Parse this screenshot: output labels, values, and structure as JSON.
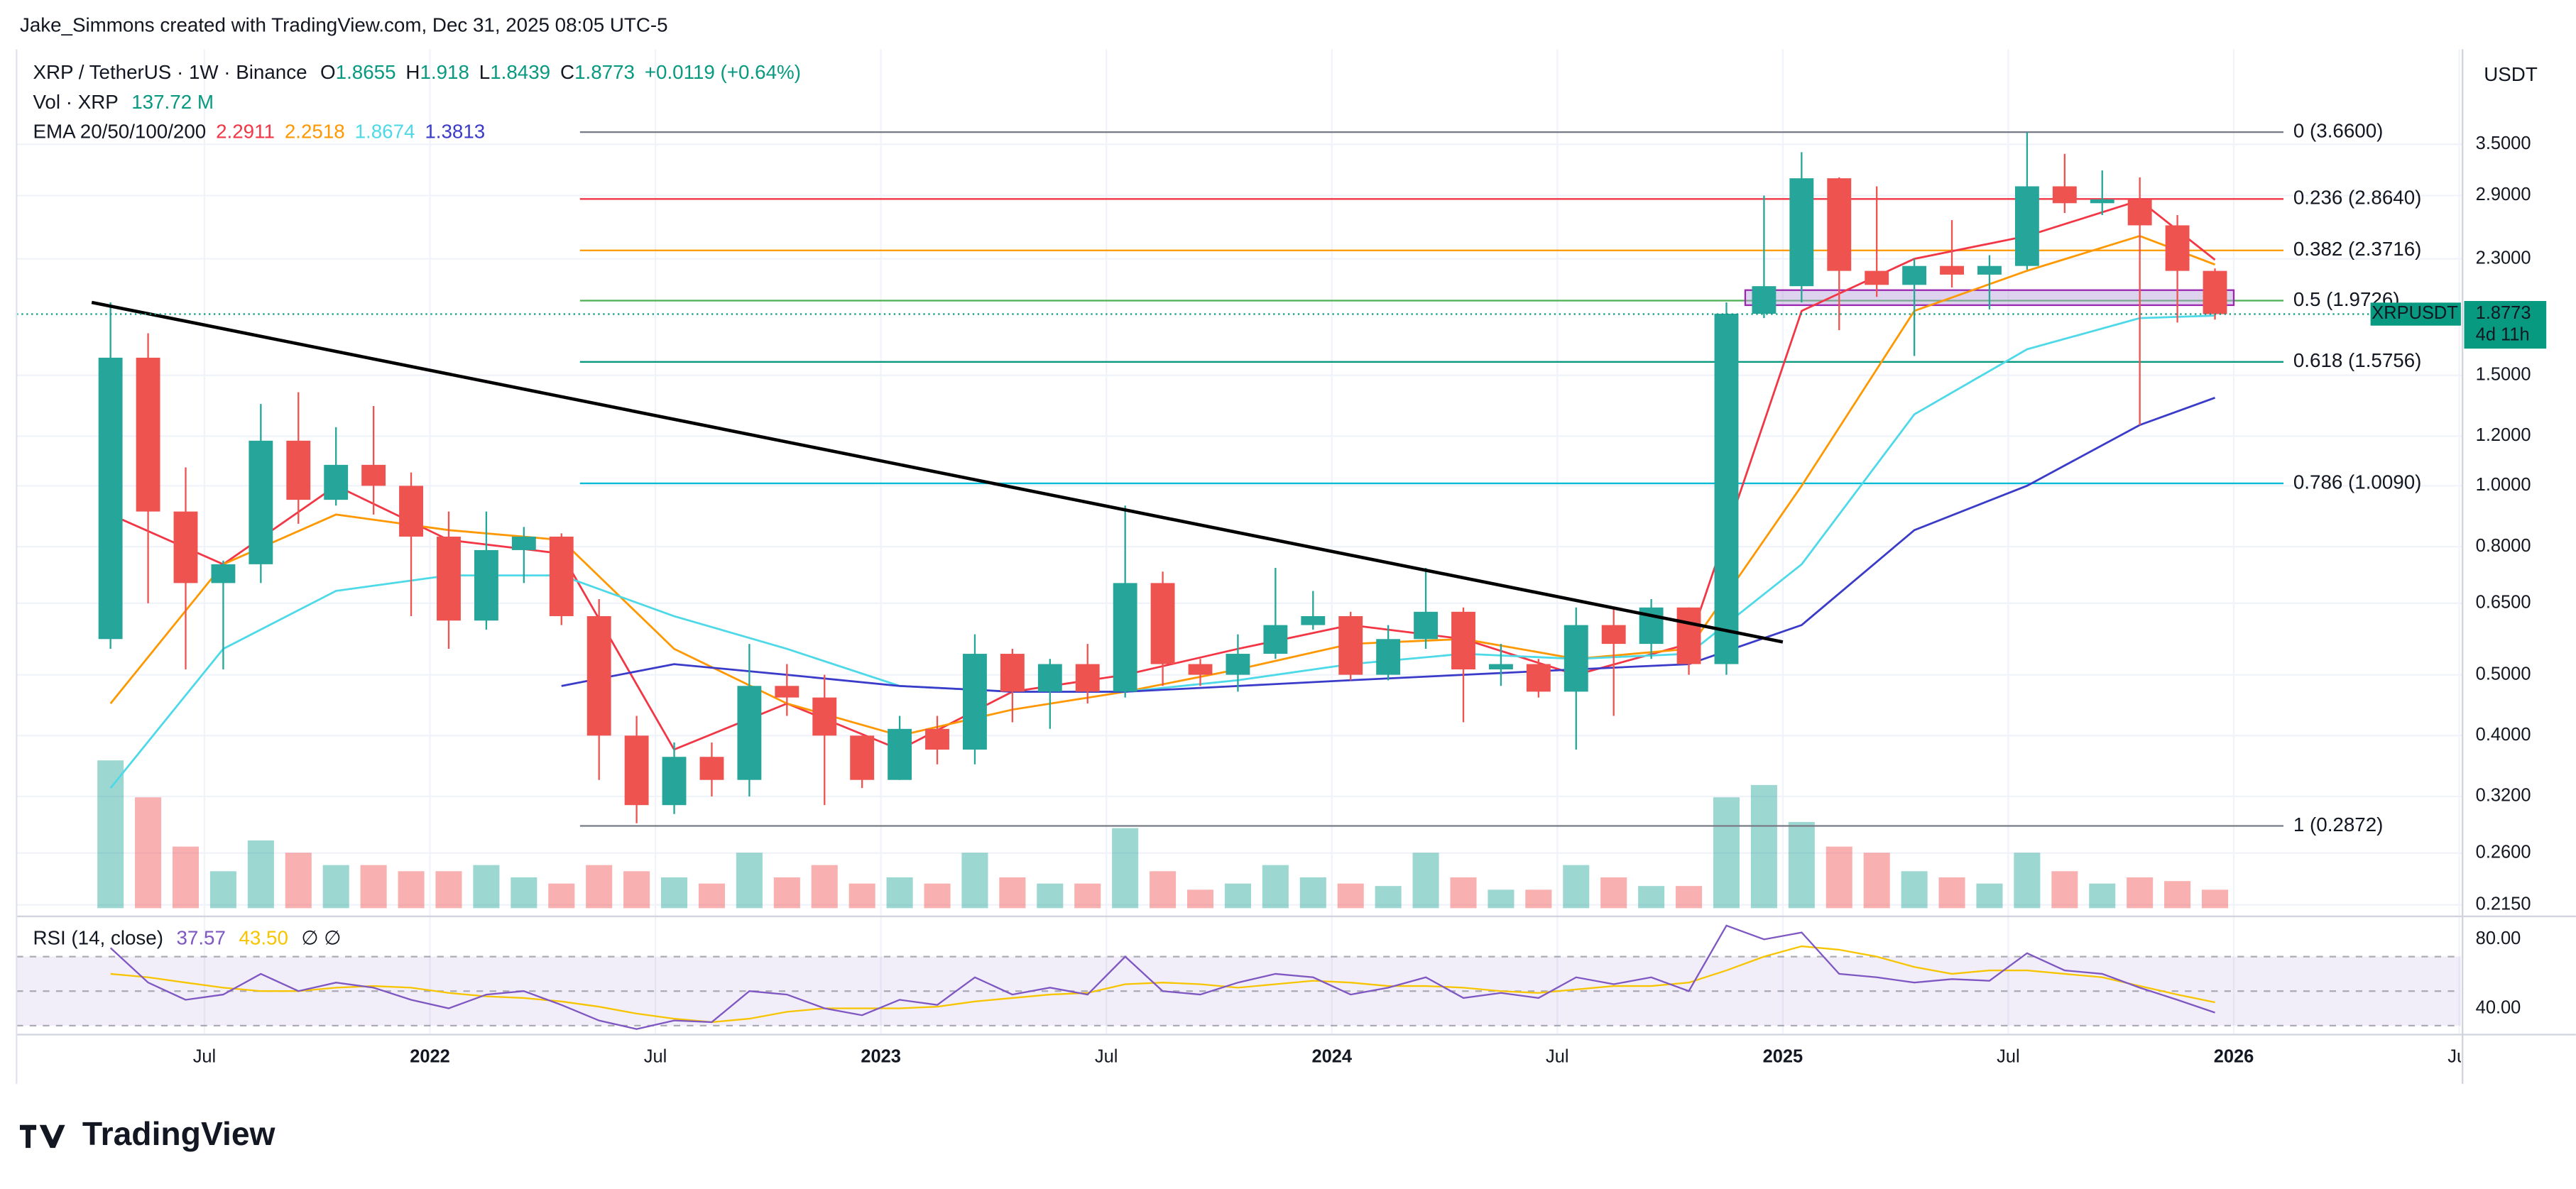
{
  "chart_data": {
    "type": "candlestick",
    "credit": "Jake_Simmons created with TradingView.com, Dec 31, 2025 08:05 UTC-5",
    "symbol": "XRP / TetherUS · 1W · Binance",
    "legend": {
      "o_label": "O",
      "o": 1.8655,
      "h_label": "H",
      "h": 1.918,
      "l_label": "L",
      "l": 1.8439,
      "c_label": "C",
      "c": 1.8773,
      "change": "+0.0119 (+0.64%)"
    },
    "currency": "USDT",
    "last_price": 1.8773,
    "ticker": "XRPUSDT",
    "countdown": "4d 11h",
    "log_scale": true,
    "grid": true,
    "up_color": "#26a69a",
    "down_color": "#ef5350",
    "xlim": [
      "2021-02",
      "2026-07"
    ],
    "ylim": [
      0.2124,
      4.96
    ],
    "yticks": [
      {
        "value": 3.5,
        "label": "3.5000"
      },
      {
        "value": 2.9,
        "label": "2.9000"
      },
      {
        "value": 2.3,
        "label": "2.3000"
      },
      {
        "value": 1.5,
        "label": "1.5000"
      },
      {
        "value": 1.2,
        "label": "1.2000"
      },
      {
        "value": 1.0,
        "label": "1.0000"
      },
      {
        "value": 0.8,
        "label": "0.8000"
      },
      {
        "value": 0.65,
        "label": "0.6500"
      },
      {
        "value": 0.5,
        "label": "0.5000"
      },
      {
        "value": 0.4,
        "label": "0.4000"
      },
      {
        "value": 0.32,
        "label": "0.3200"
      },
      {
        "value": 0.26,
        "label": "0.2600"
      },
      {
        "value": 0.215,
        "label": "0.2150"
      }
    ],
    "xticks": [
      {
        "value": "2021-07",
        "label": "Jul"
      },
      {
        "value": "2022-01",
        "label": "2022"
      },
      {
        "value": "2022-07",
        "label": "Jul"
      },
      {
        "value": "2023-01",
        "label": "2023"
      },
      {
        "value": "2023-07",
        "label": "Jul"
      },
      {
        "value": "2024-01",
        "label": "2024"
      },
      {
        "value": "2024-07",
        "label": "Jul"
      },
      {
        "value": "2025-01",
        "label": "2025"
      },
      {
        "value": "2025-07",
        "label": "Jul"
      },
      {
        "value": "2026-01",
        "label": "2026"
      },
      {
        "value": "2026-07",
        "label": "Jul"
      }
    ],
    "candles": {
      "x": [
        "2021-04",
        "2021-05",
        "2021-06",
        "2021-07",
        "2021-08",
        "2021-09",
        "2021-10",
        "2021-11",
        "2021-12",
        "2022-01",
        "2022-02",
        "2022-03",
        "2022-04",
        "2022-05",
        "2022-06",
        "2022-07",
        "2022-08",
        "2022-09",
        "2022-10",
        "2022-11",
        "2022-12",
        "2023-01",
        "2023-02",
        "2023-03",
        "2023-04",
        "2023-05",
        "2023-06",
        "2023-07",
        "2023-08",
        "2023-09",
        "2023-10",
        "2023-11",
        "2023-12",
        "2024-01",
        "2024-02",
        "2024-03",
        "2024-04",
        "2024-05",
        "2024-06",
        "2024-07",
        "2024-08",
        "2024-09",
        "2024-10",
        "2024-11",
        "2024-12",
        "2025-01",
        "2025-02",
        "2025-03",
        "2025-04",
        "2025-05",
        "2025-06",
        "2025-07",
        "2025-08",
        "2025-09",
        "2025-10",
        "2025-11",
        "2025-12"
      ],
      "open": [
        0.57,
        1.6,
        0.91,
        0.7,
        0.75,
        1.18,
        0.95,
        1.08,
        1.0,
        0.83,
        0.61,
        0.79,
        0.83,
        0.62,
        0.4,
        0.31,
        0.37,
        0.34,
        0.48,
        0.46,
        0.4,
        0.34,
        0.41,
        0.38,
        0.54,
        0.47,
        0.52,
        0.47,
        0.7,
        0.52,
        0.5,
        0.54,
        0.6,
        0.62,
        0.5,
        0.57,
        0.63,
        0.51,
        0.52,
        0.47,
        0.6,
        0.56,
        0.64,
        0.52,
        1.88,
        2.08,
        3.09,
        2.2,
        2.09,
        2.24,
        2.17,
        2.24,
        3.0,
        2.82,
        2.86,
        2.6,
        2.2
      ],
      "high": [
        1.96,
        1.75,
        1.07,
        0.76,
        1.35,
        1.41,
        1.24,
        1.34,
        1.05,
        0.91,
        0.91,
        0.86,
        0.84,
        0.66,
        0.43,
        0.39,
        0.39,
        0.56,
        0.52,
        0.5,
        0.4,
        0.43,
        0.43,
        0.58,
        0.55,
        0.53,
        0.56,
        0.93,
        0.73,
        0.53,
        0.58,
        0.74,
        0.68,
        0.63,
        0.6,
        0.74,
        0.64,
        0.56,
        0.53,
        0.64,
        0.64,
        0.66,
        0.64,
        1.96,
        2.9,
        3.4,
        3.1,
        3.0,
        2.3,
        2.65,
        2.33,
        3.66,
        3.38,
        3.18,
        3.1,
        2.7,
        2.22
      ],
      "low": [
        0.55,
        0.65,
        0.51,
        0.51,
        0.7,
        0.87,
        0.93,
        0.9,
        0.62,
        0.55,
        0.59,
        0.7,
        0.6,
        0.34,
        0.29,
        0.3,
        0.32,
        0.32,
        0.43,
        0.31,
        0.33,
        0.34,
        0.36,
        0.36,
        0.42,
        0.41,
        0.45,
        0.46,
        0.48,
        0.48,
        0.47,
        0.53,
        0.59,
        0.49,
        0.49,
        0.55,
        0.42,
        0.48,
        0.46,
        0.38,
        0.43,
        0.53,
        0.5,
        0.5,
        1.85,
        1.96,
        1.77,
        2.0,
        1.61,
        2.07,
        1.91,
        2.21,
        2.72,
        2.7,
        1.25,
        1.82,
        1.84
      ],
      "close": [
        1.6,
        0.91,
        0.7,
        0.75,
        1.18,
        0.95,
        1.08,
        1.0,
        0.83,
        0.61,
        0.79,
        0.83,
        0.62,
        0.4,
        0.31,
        0.37,
        0.34,
        0.48,
        0.46,
        0.4,
        0.34,
        0.41,
        0.38,
        0.54,
        0.47,
        0.52,
        0.47,
        0.7,
        0.52,
        0.5,
        0.54,
        0.6,
        0.62,
        0.5,
        0.57,
        0.63,
        0.51,
        0.52,
        0.47,
        0.6,
        0.56,
        0.64,
        0.52,
        1.88,
        2.08,
        3.09,
        2.2,
        2.09,
        2.24,
        2.17,
        2.24,
        3.0,
        2.82,
        2.86,
        2.6,
        2.2,
        1.8773
      ]
    },
    "volume": {
      "label": "Vol · XRP",
      "last": {
        "value": 137.72,
        "label": "137.72 M"
      },
      "vlim": [
        0,
        16000
      ],
      "values": [
        12000,
        9000,
        5000,
        3000,
        5500,
        4500,
        3500,
        3500,
        3000,
        3000,
        3500,
        2500,
        2000,
        3500,
        3000,
        2500,
        2000,
        4500,
        2500,
        3500,
        2000,
        2500,
        2000,
        4500,
        2500,
        2000,
        2000,
        6500,
        3000,
        1500,
        2000,
        3500,
        2500,
        2000,
        1800,
        4500,
        2500,
        1500,
        1500,
        3500,
        2500,
        1800,
        1800,
        9000,
        10000,
        7000,
        5000,
        4500,
        3000,
        2500,
        2000,
        4500,
        3000,
        2000,
        2500,
        2200,
        1500
      ]
    },
    "ema_label": "EMA 20/50/100/200",
    "ema_x": [
      "2021-04",
      "2021-07",
      "2021-10",
      "2022-01",
      "2022-04",
      "2022-07",
      "2022-10",
      "2023-01",
      "2023-04",
      "2023-07",
      "2023-10",
      "2024-01",
      "2024-04",
      "2024-07",
      "2024-10",
      "2025-01",
      "2025-04",
      "2025-07",
      "2025-10",
      "2025-12"
    ],
    "ema_series": [
      {
        "color": "#f23645",
        "values": [
          0.9,
          0.75,
          1.0,
          0.82,
          0.78,
          0.38,
          0.45,
          0.38,
          0.47,
          0.5,
          0.55,
          0.6,
          0.57,
          0.5,
          0.56,
          1.9,
          2.3,
          2.5,
          2.85,
          2.2911
        ]
      },
      {
        "color": "#ff9800",
        "values": [
          0.45,
          0.75,
          0.9,
          0.85,
          0.82,
          0.55,
          0.45,
          0.4,
          0.44,
          0.47,
          0.51,
          0.56,
          0.57,
          0.53,
          0.55,
          1.0,
          1.9,
          2.2,
          2.5,
          2.2518
        ]
      },
      {
        "color": "#4dd9e8",
        "values": [
          0.33,
          0.55,
          0.68,
          0.72,
          0.72,
          0.62,
          0.55,
          0.48,
          0.47,
          0.47,
          0.49,
          0.52,
          0.54,
          0.53,
          0.54,
          0.75,
          1.3,
          1.65,
          1.85,
          1.8674
        ]
      },
      {
        "color": "#3b3bc9",
        "values": [
          null,
          null,
          null,
          null,
          0.48,
          0.52,
          0.5,
          0.48,
          0.47,
          0.47,
          0.48,
          0.49,
          0.5,
          0.51,
          0.52,
          0.6,
          0.85,
          1.0,
          1.25,
          1.3813
        ]
      }
    ],
    "fib_levels": [
      {
        "price": 3.66,
        "label": "0 (3.6600)",
        "color": "#787b86"
      },
      {
        "price": 2.864,
        "label": "0.236 (2.8640)",
        "color": "#f23645"
      },
      {
        "price": 2.3716,
        "label": "0.382 (2.3716)",
        "color": "#ff9800"
      },
      {
        "price": 1.9726,
        "label": "0.5 (1.9726)",
        "color": "#4caf50"
      },
      {
        "price": 1.5756,
        "label": "0.618 (1.5756)",
        "color": "#089981"
      },
      {
        "price": 1.009,
        "label": "0.786 (1.0090)",
        "color": "#00bcd4"
      },
      {
        "price": 0.2872,
        "label": "1 (0.2872)",
        "color": "#787b86"
      }
    ],
    "trendline": {
      "x": [
        "2021-04",
        "2025-01"
      ],
      "y": [
        1.96,
        0.564
      ]
    },
    "zone": {
      "x": [
        "2024-12",
        "2026-01"
      ],
      "y": [
        1.94,
        2.05
      ]
    },
    "rsi": {
      "label": "RSI (14, close)",
      "ma_last": {
        "value": 43.5,
        "label": "43.50"
      },
      "extra": "∅ ∅",
      "ylim": [
        26.7,
        89.5
      ],
      "band": [
        30,
        70
      ],
      "mid": 50,
      "yticks": [
        {
          "value": 80,
          "label": "80.00"
        },
        {
          "value": 40,
          "label": "40.00"
        }
      ],
      "values": [
        75,
        55,
        45,
        48,
        60,
        50,
        55,
        52,
        45,
        40,
        48,
        50,
        42,
        33,
        28,
        33,
        32,
        50,
        48,
        40,
        36,
        45,
        42,
        58,
        48,
        52,
        48,
        70,
        50,
        48,
        55,
        60,
        58,
        48,
        52,
        58,
        46,
        49,
        46,
        58,
        54,
        58,
        50,
        88,
        80,
        84,
        60,
        58,
        55,
        57,
        56,
        72,
        62,
        60,
        52,
        45,
        37.57
      ],
      "ma": [
        60,
        58,
        55,
        52,
        50,
        50,
        52,
        53,
        52,
        49,
        47,
        46,
        44,
        41,
        37,
        34,
        32,
        34,
        38,
        40,
        40,
        40,
        41,
        44,
        46,
        48,
        49,
        54,
        55,
        54,
        52,
        54,
        56,
        55,
        53,
        53,
        52,
        50,
        49,
        51,
        53,
        53,
        55,
        62,
        70,
        76,
        74,
        70,
        64,
        60,
        62,
        62,
        60,
        58,
        53,
        48,
        43.5
      ]
    },
    "brand": "TradingView"
  }
}
